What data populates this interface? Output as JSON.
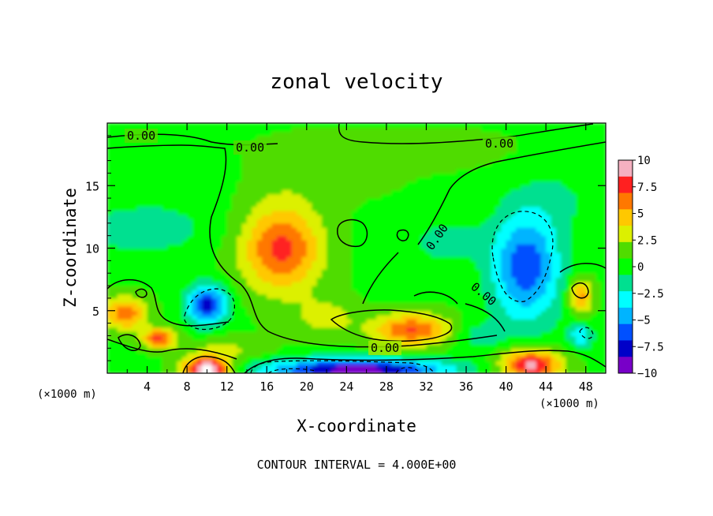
{
  "chart_data": {
    "type": "heatmap",
    "title": "zonal velocity",
    "xlabel": "X-coordinate",
    "ylabel": "Z-coordinate",
    "x_unit_left": "(×1000 m)",
    "x_unit_right": "(×1000 m)",
    "xlim": [
      0,
      50
    ],
    "ylim": [
      0,
      20
    ],
    "xticks": [
      4,
      8,
      12,
      16,
      20,
      24,
      28,
      32,
      36,
      40,
      44,
      48
    ],
    "xtick_labels": [
      "4",
      "8",
      "12",
      "16",
      "20",
      "24",
      "28",
      "32",
      "36",
      "40",
      "44",
      "48"
    ],
    "yticks": [
      5,
      10,
      15
    ],
    "ytick_labels": [
      "5",
      "10",
      "15"
    ],
    "colorbar": {
      "range": [
        -10,
        10
      ],
      "ticks": [
        10,
        7.5,
        5,
        2.5,
        0,
        -2.5,
        -5,
        -7.5,
        -10
      ],
      "tick_labels": [
        "10",
        "7.5",
        "5",
        "2.5",
        "0",
        "−2.5",
        "−5",
        "−7.5",
        "−10"
      ],
      "colors": [
        "#f5b0c0",
        "#ff2020",
        "#ff7800",
        "#ffc800",
        "#dcf000",
        "#50dc00",
        "#00ff00",
        "#00e090",
        "#00ffff",
        "#00b4ff",
        "#0050ff",
        "#0000c8",
        "#7800c8"
      ]
    },
    "contour_interval_text": "CONTOUR INTERVAL = 4.000E+00",
    "contour_labels": [
      "0.00",
      "0.00",
      "0.00",
      "0.00",
      "0.00",
      "0.00"
    ],
    "background_value": 0.5,
    "features": [
      {
        "x": 17.5,
        "z": 10.0,
        "rx": 4.0,
        "rz": 3.5,
        "value": 7
      },
      {
        "x": 30.5,
        "z": 3.5,
        "rx": 4.0,
        "rz": 1.3,
        "value": 6.5
      },
      {
        "x": 42.0,
        "z": 8.5,
        "rx": 3.5,
        "rz": 4.5,
        "value": -7
      },
      {
        "x": 10.0,
        "z": 5.5,
        "rx": 2.0,
        "rz": 1.6,
        "value": -8
      },
      {
        "x": 1.8,
        "z": 4.8,
        "rx": 2.2,
        "rz": 1.3,
        "value": 6
      },
      {
        "x": 5.2,
        "z": 2.8,
        "rx": 1.6,
        "rz": 0.8,
        "value": 7
      },
      {
        "x": 10.0,
        "z": 0.3,
        "rx": 2.4,
        "rz": 1.0,
        "value": 11
      },
      {
        "x": 25.0,
        "z": 0.3,
        "rx": 9.0,
        "rz": 0.9,
        "value": -10
      },
      {
        "x": 42.5,
        "z": 0.7,
        "rx": 3.0,
        "rz": 1.2,
        "value": 9
      },
      {
        "x": 47.5,
        "z": 6.2,
        "rx": 1.2,
        "rz": 1.4,
        "value": 5.5
      },
      {
        "x": 47.5,
        "z": 3.0,
        "rx": 1.2,
        "rz": 1.0,
        "value": -4
      },
      {
        "x": 3.5,
        "z": 11.5,
        "rx": 7.0,
        "rz": 2.0,
        "value": -2.2
      },
      {
        "x": 7.0,
        "z": 16.0,
        "rx": 6.0,
        "rz": 2.5,
        "value": -1
      },
      {
        "x": 21.0,
        "z": 16.5,
        "rx": 8.0,
        "rz": 2.5,
        "value": 1.2
      },
      {
        "x": 34.0,
        "z": 10.5,
        "rx": 3.5,
        "rz": 1.5,
        "value": -2.3
      },
      {
        "x": 22.0,
        "z": 4.5,
        "rx": 3.0,
        "rz": 1.5,
        "value": 2.5
      },
      {
        "x": 37.0,
        "z": 3.0,
        "rx": 2.5,
        "rz": 1.2,
        "value": -2.0
      },
      {
        "x": 33.0,
        "z": 18.0,
        "rx": 8.0,
        "rz": 1.5,
        "value": 1.0
      },
      {
        "x": 12.0,
        "z": 2.0,
        "rx": 4.0,
        "rz": 1.0,
        "value": 2.0
      },
      {
        "x": 45.5,
        "z": 14.0,
        "rx": 4.0,
        "rz": 2.5,
        "value": -1.2
      }
    ]
  }
}
